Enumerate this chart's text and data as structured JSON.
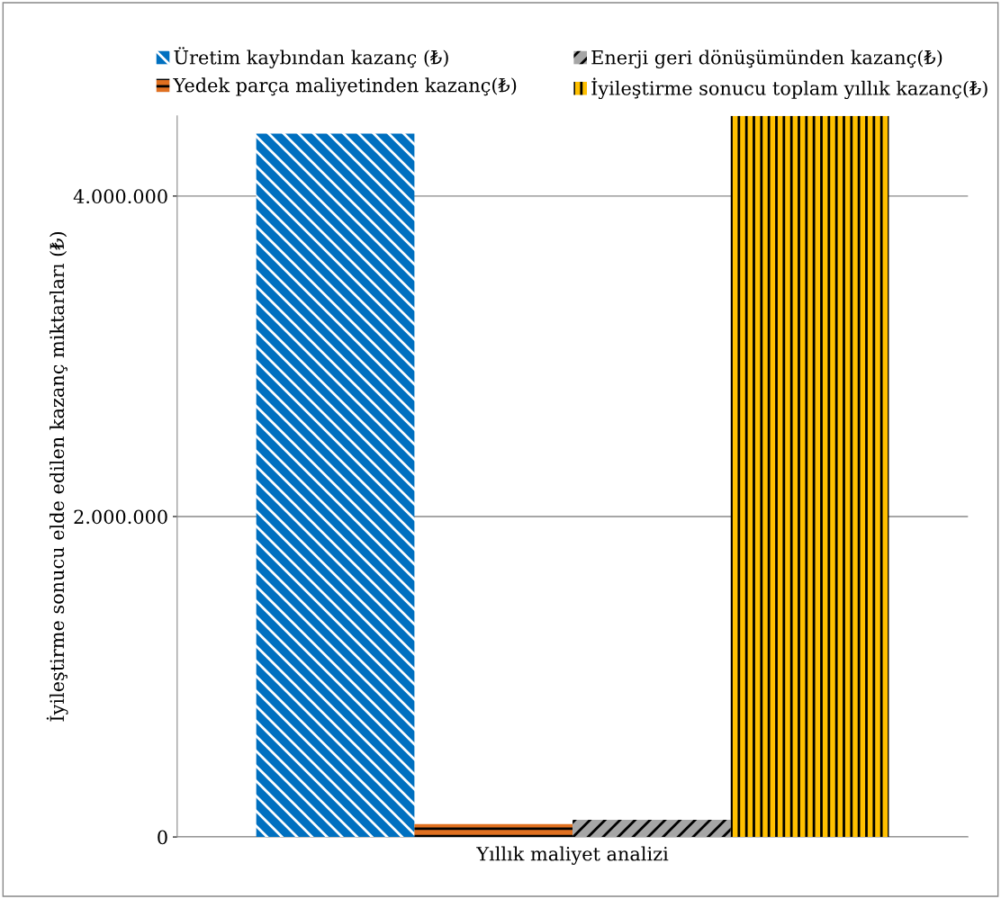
{
  "chart_data": {
    "type": "bar",
    "xlabel": "Yıllık maliyet analizi",
    "ylabel": "İyileştirme sonucu elde edilen kazanç miktarları (₺)",
    "categories": [
      null
    ],
    "series": [
      {
        "name": "Üretim kaybından kazanç (₺)",
        "color": "#0070c0",
        "values": [
          4390000
        ]
      },
      {
        "name": "Yedek parça maliyetinden kazanç(₺)",
        "color": "#e07020",
        "values": [
          80000
        ]
      },
      {
        "name": "Enerji geri dönüşümünden kazanç(₺)",
        "color": "#a6a6a6",
        "values": [
          107000
        ]
      },
      {
        "name": "İyileştirme sonucu toplam yıllık kazanç(₺)",
        "color": "#ffc000",
        "values": [
          4500000
        ]
      }
    ],
    "ylim": [
      0,
      4500000
    ],
    "yticks": [
      {
        "value": 0,
        "label": "0"
      },
      {
        "value": 2000000,
        "label": "2.000.000"
      },
      {
        "value": 4000000,
        "label": "4.000.000"
      }
    ],
    "grid": "y",
    "legend": "top"
  }
}
